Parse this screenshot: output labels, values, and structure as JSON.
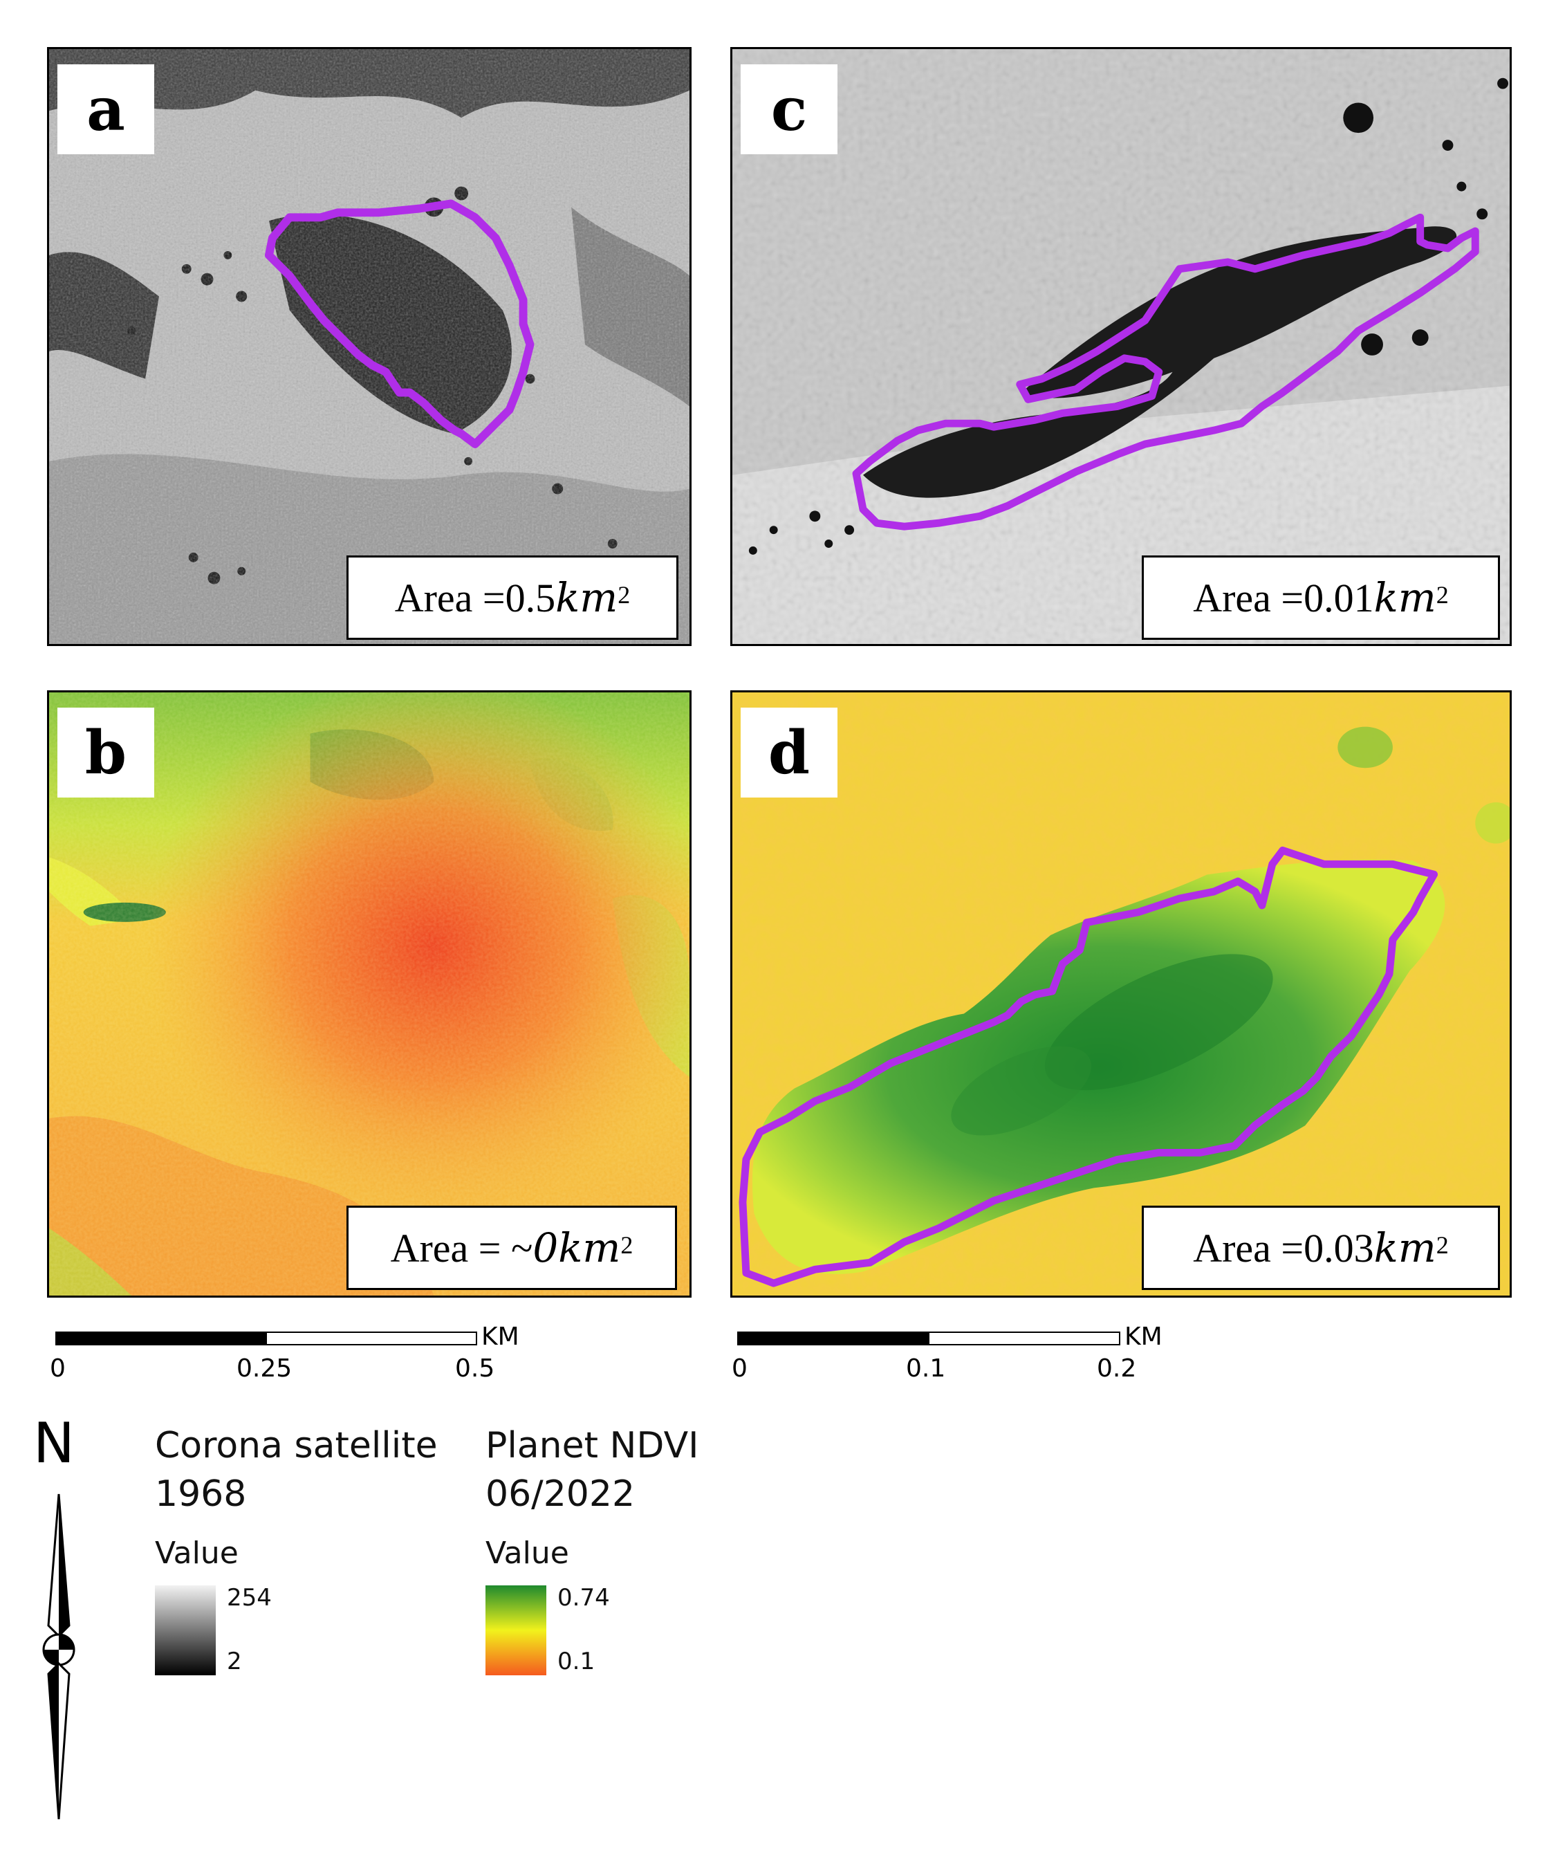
{
  "panels": {
    "a": {
      "label": "a",
      "area_prefix": "Area = ",
      "area_value": "0.5",
      "area_unit": "km",
      "area_exp": "2"
    },
    "b": {
      "label": "b",
      "area_prefix": "Area = ~",
      "area_value": "0",
      "area_unit": "km",
      "area_exp": "2"
    },
    "c": {
      "label": "c",
      "area_prefix": "Area = ",
      "area_value": "0.01",
      "area_unit": "km",
      "area_exp": "2"
    },
    "d": {
      "label": "d",
      "area_prefix": "Area = ",
      "area_value": "0.03",
      "area_unit": "km",
      "area_exp": "2"
    }
  },
  "scalebar_left": {
    "unit": "KM",
    "ticks": [
      "0",
      "0.25",
      "0.5"
    ]
  },
  "scalebar_right": {
    "unit": "KM",
    "ticks": [
      "0",
      "0.1",
      "0.2"
    ]
  },
  "north_arrow": {
    "label": "N"
  },
  "legend": {
    "corona": {
      "title_line1": "Corona satellite",
      "title_line2": "1968",
      "value_label": "Value",
      "max": "254",
      "min": "2"
    },
    "ndvi": {
      "title_line1": "Planet NDVI",
      "title_line2": "06/2022",
      "value_label": "Value",
      "max": "0.74",
      "min": "0.1"
    }
  },
  "colors": {
    "outline": "#b02ee8",
    "ndvi_high": "#1f8a2e",
    "ndvi_mid": "#f2f21c",
    "ndvi_low": "#f55a1e",
    "gray_high": "#f2f2f2",
    "gray_low": "#000000"
  }
}
